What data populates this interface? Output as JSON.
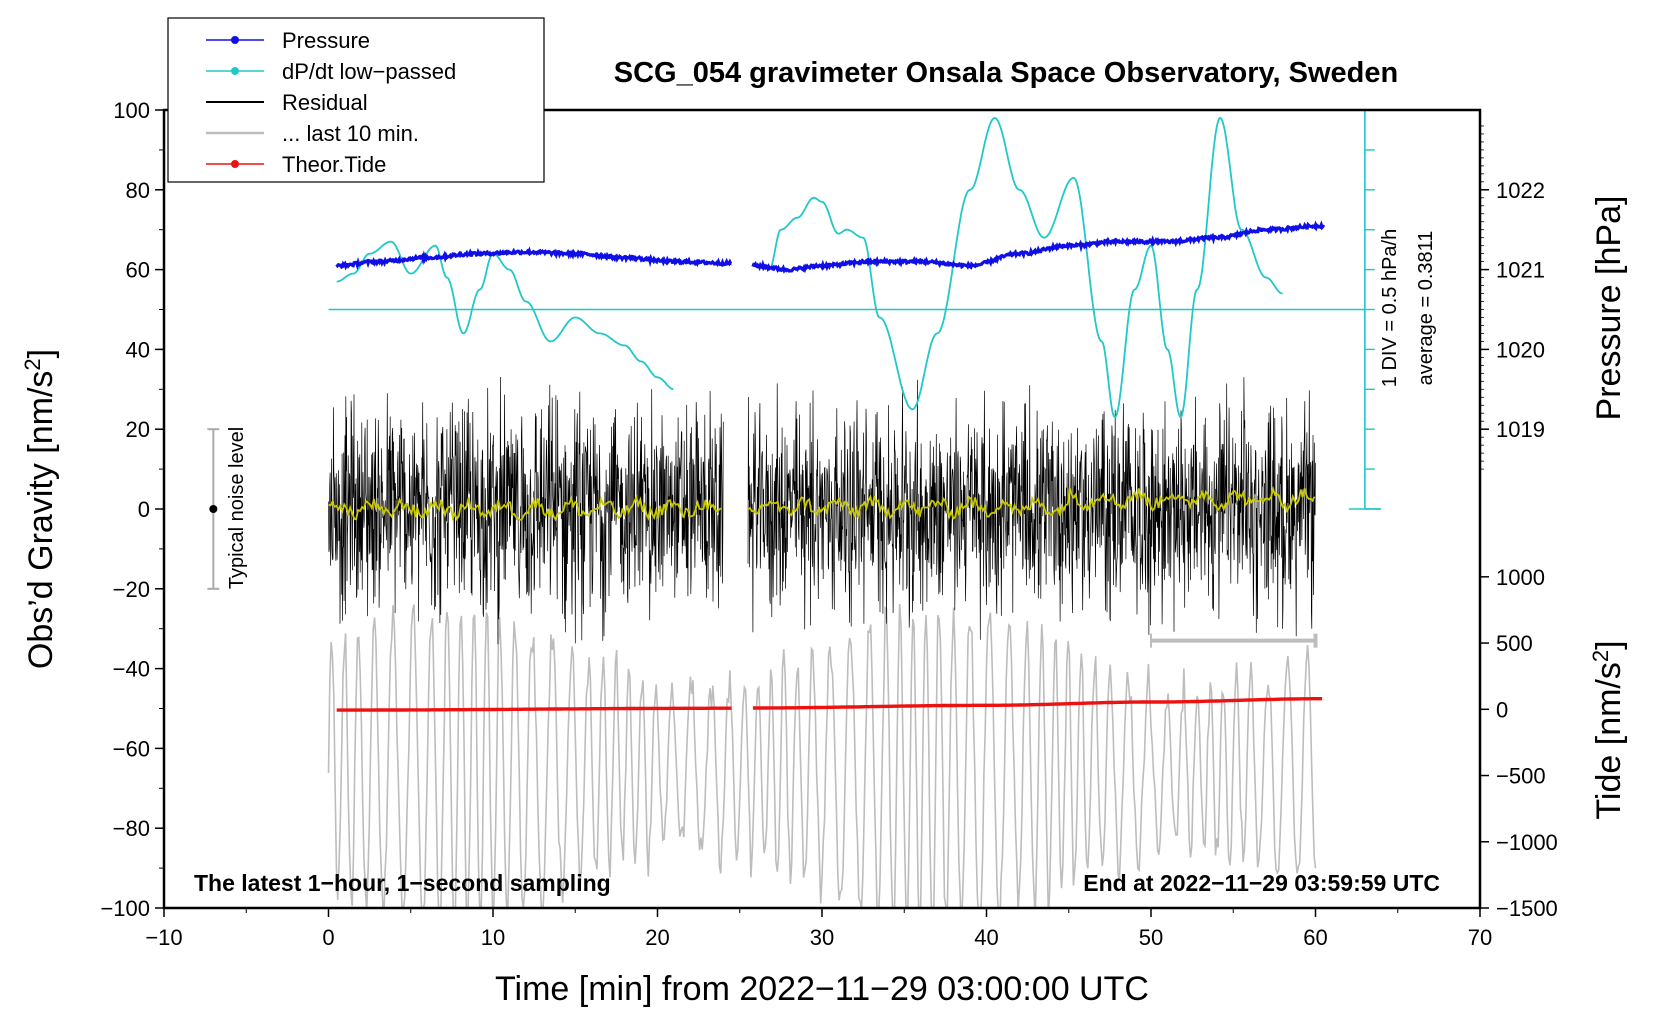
{
  "chart_data": {
    "type": "line",
    "title": "SCG_054 gravimeter Onsala Space Observatory, Sweden",
    "xlabel": "Time [min] from 2022−11−29 03:00:00 UTC",
    "ylabel_left_prefix": "Obs’d Gravity [nm/s",
    "ylabel_left_sup": "2",
    "ylabel_left_suffix": "]",
    "ylabel_pressure": "Pressure [hPa]",
    "ylabel_tide_prefix": "Tide [nm/s",
    "ylabel_tide_sup": "2",
    "ylabel_tide_suffix": "]",
    "xlim": [
      -10,
      70
    ],
    "ylim": [
      -100,
      100
    ],
    "x_ticks": [
      -10,
      0,
      10,
      20,
      30,
      40,
      50,
      60,
      70
    ],
    "x_tick_labels": [
      "−10",
      "0",
      "10",
      "20",
      "30",
      "40",
      "50",
      "60",
      "70"
    ],
    "y_ticks": [
      -100,
      -80,
      -60,
      -40,
      -20,
      0,
      20,
      40,
      60,
      80,
      100
    ],
    "y_tick_labels": [
      "−100",
      "−80",
      "−60",
      "−40",
      "−20",
      "0",
      "20",
      "40",
      "60",
      "80",
      "100"
    ],
    "pressure_axis": {
      "map_value": [
        1019,
        1022
      ],
      "map_gravity": [
        20,
        80
      ],
      "ticks": [
        1019,
        1020,
        1021,
        1022
      ],
      "tick_labels": [
        "1019",
        "1020",
        "1021",
        "1022"
      ]
    },
    "tide_axis": {
      "map_value": [
        -1500,
        1000
      ],
      "map_gravity": [
        -100,
        -17
      ],
      "ticks": [
        -1500,
        -1000,
        -500,
        0,
        500,
        1000
      ],
      "tick_labels": [
        "−1500",
        "−1000",
        "−500",
        "0",
        "500",
        "1000"
      ]
    },
    "legend": {
      "placement": "top-left",
      "entries": [
        {
          "label": "Pressure",
          "color": "#1010e6",
          "marker": true
        },
        {
          "label": "dP/dt low−passed",
          "color": "#20c8c8",
          "marker": true
        },
        {
          "label": "Residual",
          "color": "#000000",
          "marker": false
        },
        {
          "label": "... last 10 min.",
          "color": "#bdbdbd",
          "marker": false
        },
        {
          "label": "Theor.Tide",
          "color": "#ee1111",
          "marker": true
        }
      ]
    },
    "noise_indicator": {
      "label": "Typical noise level",
      "x": -7,
      "center": 0,
      "low": -20,
      "high": 20
    },
    "dpdt_scale": {
      "x": 63,
      "zero_line_y": 50,
      "bottom_y": 0,
      "top_y": 100,
      "div_label": "1 DIV = 0.5 hPa/h",
      "average_label": "average = 0.3811"
    },
    "annotations": {
      "bottom_left": "The latest 1−hour, 1−second sampling",
      "bottom_right": "End at 2022−11−29 03:59:59 UTC"
    },
    "series": [
      {
        "name": "Pressure",
        "unit": "hPa",
        "color": "#1010e6",
        "segments": [
          {
            "x": [
              0.5,
              3,
              6,
              9,
              12,
              15,
              18,
              21,
              24.5
            ],
            "y": [
              1021.05,
              1021.1,
              1021.15,
              1021.2,
              1021.22,
              1021.2,
              1021.15,
              1021.1,
              1021.08
            ]
          },
          {
            "x": [
              25.8,
              28,
              30,
              33,
              36,
              39,
              42,
              45,
              48,
              51,
              54,
              57,
              60.5
            ],
            "y": [
              1021.05,
              1021.0,
              1021.05,
              1021.1,
              1021.1,
              1021.05,
              1021.2,
              1021.3,
              1021.35,
              1021.35,
              1021.4,
              1021.5,
              1021.55
            ]
          }
        ]
      },
      {
        "name": "dP/dt low−passed",
        "unit": "gravity-axis units",
        "color": "#20c8c8",
        "segments": [
          {
            "x": [
              0.5,
              1.5,
              2.5,
              3.8,
              5,
              6.5,
              7.2,
              8.2,
              9.2,
              10,
              11,
              12,
              13.5,
              15,
              16.5,
              18,
              19,
              20,
              21
            ],
            "y": [
              57,
              59,
              64,
              67,
              59,
              66,
              58,
              44,
              55,
              64,
              60,
              52,
              42,
              48,
              44,
              41,
              37,
              33,
              30
            ]
          },
          {
            "x": [
              26.8,
              27.5,
              28.5,
              29.5,
              30,
              31,
              31.5,
              32.5,
              33.5,
              35.5,
              37,
              39,
              40.5,
              42,
              43.5,
              45.3,
              47,
              47.8,
              49,
              50,
              51,
              51.8,
              52.8,
              54.2,
              55.5,
              57,
              58
            ],
            "y": [
              60,
              70,
              73,
              78,
              77,
              69,
              70,
              68,
              48,
              25,
              44,
              80,
              98,
              80,
              68,
              83,
              42,
              23,
              55,
              66,
              40,
              23,
              55,
              98,
              70,
              58,
              54
            ]
          }
        ]
      },
      {
        "name": "Residual",
        "color": "#000000",
        "segments": [
          [
            0,
            24
          ],
          [
            25.5,
            60
          ]
        ],
        "envelope": [
          -35,
          35
        ]
      },
      {
        "name": "Residual low-passed",
        "color": "#c8c800",
        "segments": [
          [
            0,
            24
          ],
          [
            25.5,
            60
          ]
        ]
      },
      {
        "name": "... last 10 min.",
        "color": "#bdbdbd",
        "x_range": [
          0,
          60
        ]
      },
      {
        "name": "Theor.Tide",
        "unit": "nm/s2",
        "color": "#ee1111",
        "segments": [
          {
            "x": [
              0.5,
              24.5
            ],
            "y": [
              -6,
              8
            ]
          },
          {
            "x": [
              25.8,
              40,
              50,
              60.5
            ],
            "y": [
              10,
              30,
              55,
              80
            ]
          }
        ]
      }
    ],
    "last10_bar": {
      "x": [
        50,
        60
      ],
      "y": -33
    }
  }
}
